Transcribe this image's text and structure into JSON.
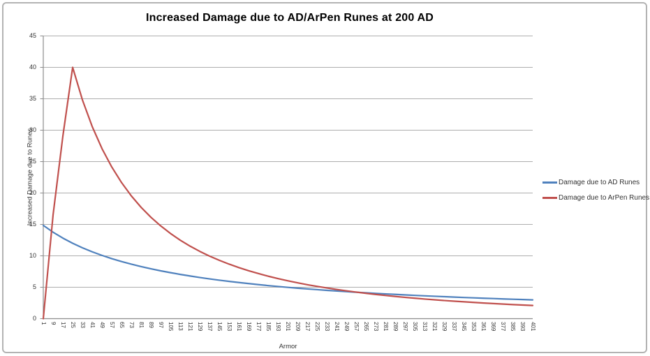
{
  "chart_data": {
    "type": "line",
    "title": "Increased Damage due to AD/ArPen Runes at 200 AD",
    "xlabel": "Armor",
    "ylabel": "Increased Damage due to Runes",
    "ylim": [
      0,
      45
    ],
    "y_ticks": [
      0,
      5,
      10,
      15,
      20,
      25,
      30,
      35,
      40,
      45
    ],
    "grid": true,
    "legend_position": "right",
    "categories": [
      1,
      9,
      17,
      25,
      33,
      41,
      49,
      57,
      65,
      73,
      81,
      89,
      97,
      105,
      113,
      121,
      129,
      137,
      145,
      153,
      161,
      169,
      177,
      185,
      193,
      201,
      209,
      217,
      225,
      233,
      241,
      249,
      257,
      265,
      273,
      281,
      289,
      297,
      305,
      313,
      321,
      329,
      337,
      345,
      353,
      361,
      369,
      377,
      385,
      393,
      401
    ],
    "series": [
      {
        "name": "Damage due to AD Runes",
        "color": "#4F81BD",
        "values": [
          14.85,
          13.76,
          12.82,
          12.0,
          11.28,
          10.64,
          10.07,
          9.55,
          9.09,
          8.67,
          8.29,
          7.94,
          7.61,
          7.32,
          7.04,
          6.79,
          6.55,
          6.33,
          6.12,
          5.93,
          5.75,
          5.58,
          5.42,
          5.26,
          5.12,
          4.98,
          4.85,
          4.73,
          4.62,
          4.5,
          4.4,
          4.3,
          4.2,
          4.11,
          4.02,
          3.94,
          3.86,
          3.78,
          3.7,
          3.63,
          3.56,
          3.5,
          3.43,
          3.37,
          3.31,
          3.25,
          3.2,
          3.14,
          3.09,
          3.04,
          2.99
        ]
      },
      {
        "name": "Damage due to ArPen Runes",
        "color": "#C0504D",
        "values": [
          0,
          16.51,
          29.06,
          40.0,
          34.81,
          30.57,
          27.06,
          24.13,
          21.65,
          19.53,
          17.71,
          16.13,
          14.76,
          13.55,
          12.48,
          11.54,
          10.7,
          9.95,
          9.28,
          8.67,
          8.12,
          7.62,
          7.17,
          6.75,
          6.37,
          6.02,
          5.7,
          5.4,
          5.13,
          4.88,
          4.64,
          4.42,
          4.22,
          4.03,
          3.85,
          3.69,
          3.53,
          3.38,
          3.25,
          3.12,
          3.0,
          2.88,
          2.78,
          2.68,
          2.58,
          2.49,
          2.4,
          2.32,
          2.24,
          2.17,
          2.1
        ]
      }
    ],
    "colors": {
      "gridline": "#ADADAD",
      "axis": "#8C8C8C",
      "tick_text": "#333333",
      "frame_border": "#B3B3B3"
    }
  }
}
